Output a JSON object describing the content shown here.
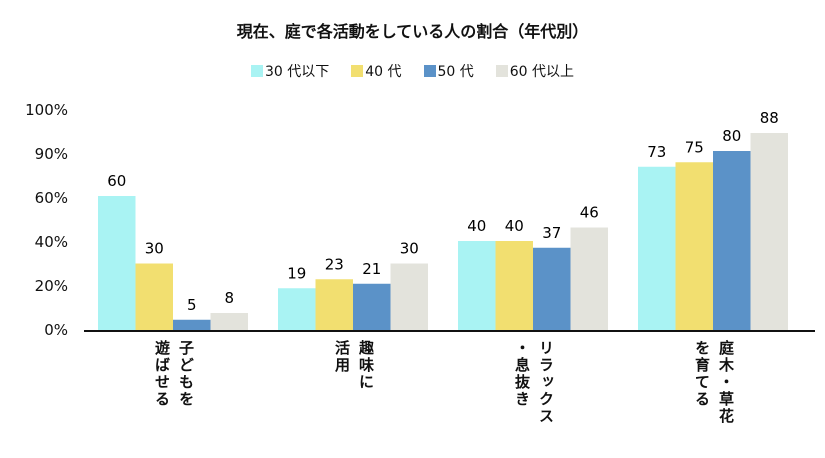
{
  "chart_data": {
    "type": "bar",
    "title": "現在、庭で各活動をしている人の割合（年代別）",
    "categories": [
      "子どもを\n遊ばせる",
      "趣味に\n活用",
      "リラックス\n・息抜き",
      "庭木・草花\nを育てる"
    ],
    "series": [
      {
        "name": "30 代以下",
        "color": "#a9f3f3",
        "values": [
          60,
          19,
          40,
          73
        ]
      },
      {
        "name": "40 代",
        "color": "#f2df70",
        "values": [
          30,
          23,
          40,
          75
        ]
      },
      {
        "name": "50 代",
        "color": "#5b92c8",
        "values": [
          5,
          21,
          37,
          80
        ]
      },
      {
        "name": "60 代以上",
        "color": "#e3e3dc",
        "values": [
          8,
          30,
          46,
          88
        ]
      }
    ],
    "ytick_labels": [
      "0%",
      "20%",
      "40%",
      "60%",
      "90%",
      "100%"
    ],
    "ylim": [
      0,
      100
    ],
    "legend": "top-center",
    "grid": false
  }
}
